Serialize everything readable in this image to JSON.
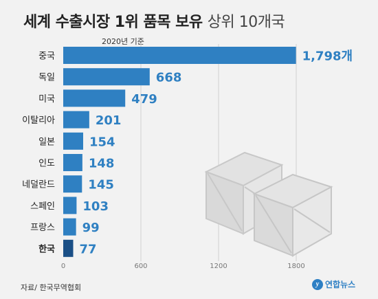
{
  "header": {
    "title_main": "세계 수출시장 1위 품목 보유",
    "title_sub": "상위 10개국",
    "date_note": "2020년 기준"
  },
  "footer": {
    "source": "자료/ 한국무역협회",
    "logo_text": "연합뉴스",
    "logo_mark": "y"
  },
  "colors": {
    "bar": "#2f80c2",
    "highlight": "#1a4f86",
    "value_text": "#2f80c2"
  },
  "illustration": "wooden-crates-icon",
  "chart_data": {
    "type": "bar",
    "orientation": "horizontal",
    "categories": [
      "중국",
      "독일",
      "미국",
      "이탈리아",
      "일본",
      "인도",
      "네덜란드",
      "스페인",
      "프랑스",
      "한국"
    ],
    "values": [
      1798,
      668,
      479,
      201,
      154,
      148,
      145,
      103,
      99,
      77
    ],
    "value_labels": [
      "1,798개",
      "668",
      "479",
      "201",
      "154",
      "148",
      "145",
      "103",
      "99",
      "77"
    ],
    "highlight_category": "한국",
    "xlim": [
      0,
      1800
    ],
    "xticks": [
      0,
      600,
      1200,
      1800
    ],
    "grid": true,
    "title": "",
    "xlabel": "",
    "ylabel": ""
  }
}
